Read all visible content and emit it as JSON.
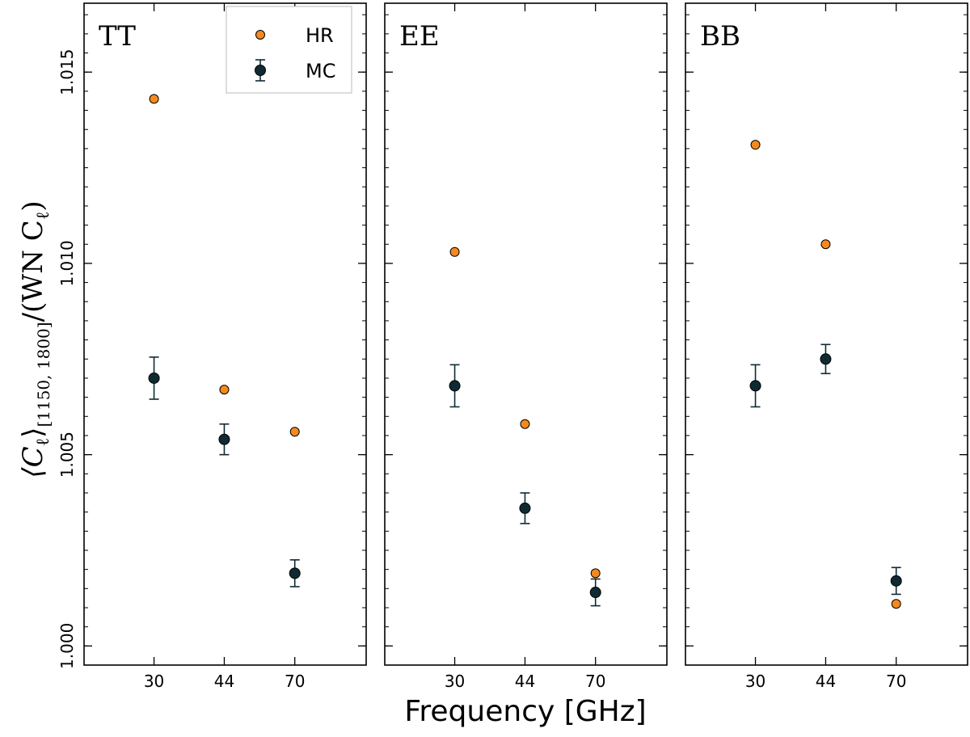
{
  "chart_data": {
    "type": "scatter",
    "xlabel": "Frequency [GHz]",
    "ylabel": "⟨C_ℓ⟩_[1150, 1800] / (WN C_ℓ)",
    "ylabel_parts": {
      "main": "⟨C",
      "sub_l": "ℓ",
      "close": "⟩",
      "range": "[1150, 1800]",
      "div": "/(WN C",
      "sub_l2": "ℓ",
      "end": ")"
    },
    "ylim": [
      0.9995,
      1.0168
    ],
    "yticks": [
      1.0,
      1.005,
      1.01,
      1.015
    ],
    "ytick_labels": [
      "1.000",
      "1.005",
      "1.010",
      "1.015"
    ],
    "y_minor_step": 0.0005,
    "categories": [
      "30",
      "44",
      "70"
    ],
    "legend": {
      "placement": "top-right",
      "panel": 0,
      "items": [
        {
          "label": "HR",
          "color": "#f5891f",
          "errorbar": false
        },
        {
          "label": "MC",
          "color": "#0f2a33",
          "errorbar": true
        }
      ]
    },
    "colors": {
      "HR": "#f5891f",
      "MC": "#0f2a33"
    },
    "panels": [
      {
        "title": "TT",
        "series": [
          {
            "name": "HR",
            "values": [
              1.0143,
              1.0067,
              1.0056
            ]
          },
          {
            "name": "MC",
            "values": [
              1.007,
              1.0054,
              1.0019
            ],
            "errors": [
              0.00055,
              0.0004,
              0.00035
            ]
          }
        ]
      },
      {
        "title": "EE",
        "series": [
          {
            "name": "HR",
            "values": [
              1.0103,
              1.0058,
              1.0019
            ]
          },
          {
            "name": "MC",
            "values": [
              1.0068,
              1.0036,
              1.0014
            ],
            "errors": [
              0.00055,
              0.0004,
              0.00035
            ]
          }
        ]
      },
      {
        "title": "BB",
        "series": [
          {
            "name": "HR",
            "values": [
              1.0131,
              1.0105,
              1.0011
            ]
          },
          {
            "name": "MC",
            "values": [
              1.0068,
              1.0075,
              1.0017
            ],
            "errors": [
              0.00055,
              0.00038,
              0.00035
            ]
          }
        ]
      }
    ]
  }
}
